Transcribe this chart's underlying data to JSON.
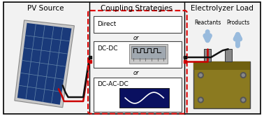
{
  "panel_titles": [
    "PV Source",
    "Coupling Strategies",
    "Electrolyzer Load"
  ],
  "coupling_labels": [
    "Direct",
    "DC-DC",
    "DC-AC-DC"
  ],
  "or_labels": [
    "or",
    "or"
  ],
  "reactants_label": "Reactants",
  "products_label": "Products",
  "bg_color": "#ffffff",
  "wire_red": "#cc0000",
  "wire_black": "#111111",
  "solar_blue": "#1a3a7a",
  "solar_grid": "#6688aa",
  "solar_frame": "#c8c8c8",
  "electrolyzer_body": "#8b7a20",
  "electrolyzer_top": "#706010",
  "dashed_box_color": "#dd0000",
  "dc_dc_gray": "#c0c0c0",
  "dc_ac_dc_blue": "#0a1060",
  "arrow_blue": "#99bbdd",
  "panel_bg": "#f2f2f2",
  "title_fontsize": 7.5,
  "label_fontsize": 6.5,
  "or_fontsize": 6.0,
  "fig_width": 3.78,
  "fig_height": 1.66,
  "fig_dpi": 100
}
